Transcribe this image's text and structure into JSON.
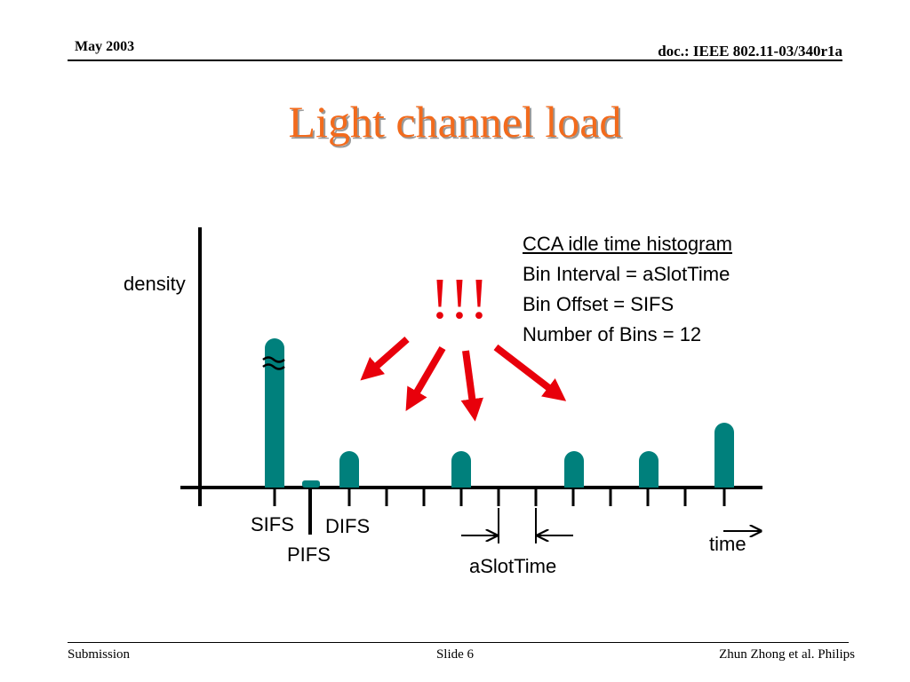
{
  "header": {
    "date": "May 2003",
    "doc": "doc.: IEEE 802.11-03/340r1a"
  },
  "title": "Light channel load",
  "diagram": {
    "y_label": "density",
    "x_label": "time",
    "info_title": "CCA idle time histogram",
    "info_lines": [
      "Bin Interval = aSlotTime",
      "Bin Offset = SIFS",
      "Number of Bins = 12"
    ],
    "exclaim": "!!!",
    "tick_labels": {
      "sifs": "SIFS",
      "pifs": "PIFS",
      "difs": "DIFS",
      "aslot": "aSlotTime"
    },
    "break_mark": "≈",
    "colors": {
      "bar": "#00807c",
      "arrow": "#e8000b",
      "title": "#f26b1d"
    }
  },
  "footer": {
    "left": "Submission",
    "center": "Slide 6",
    "right": "Zhun Zhong et al. Philips"
  }
}
